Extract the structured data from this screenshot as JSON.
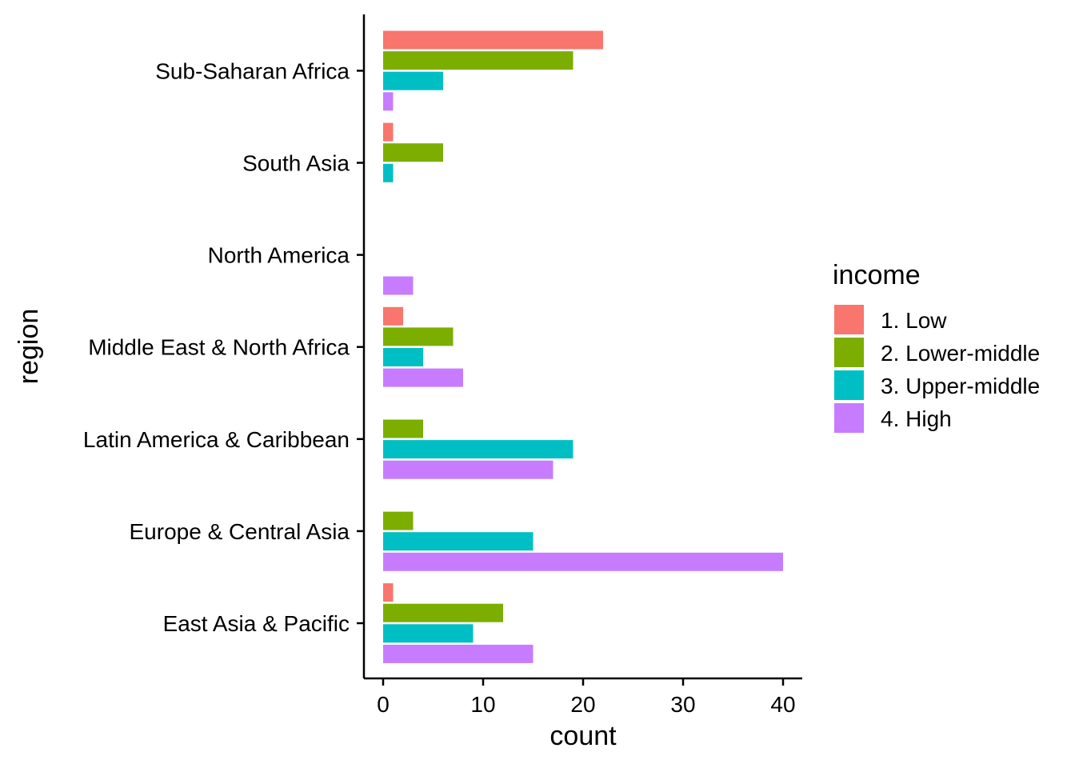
{
  "chart_data": {
    "type": "bar",
    "orientation": "horizontal",
    "xlabel": "count",
    "ylabel": "region",
    "xlim": [
      0,
      42
    ],
    "xticks": [
      0,
      10,
      20,
      30,
      40
    ],
    "xtick_labels": [
      "0",
      "10",
      "20",
      "30",
      "40"
    ],
    "grid": false,
    "legend": {
      "title": "income",
      "placement": "right"
    },
    "categories": [
      "East Asia & Pacific",
      "Europe & Central Asia",
      "Latin America & Caribbean",
      "Middle East & North Africa",
      "North America",
      "South Asia",
      "Sub-Saharan Africa"
    ],
    "series": [
      {
        "name": "1. Low",
        "color": "#F8766D",
        "values": [
          1,
          0,
          0,
          2,
          0,
          1,
          22
        ]
      },
      {
        "name": "2. Lower-middle",
        "color": "#7CAE00",
        "values": [
          12,
          3,
          4,
          7,
          0,
          6,
          19
        ]
      },
      {
        "name": "3. Upper-middle",
        "color": "#00BFC4",
        "values": [
          9,
          15,
          19,
          4,
          0,
          1,
          6
        ]
      },
      {
        "name": "4. High",
        "color": "#C77CFF",
        "values": [
          15,
          40,
          17,
          8,
          3,
          0,
          1
        ]
      }
    ]
  }
}
